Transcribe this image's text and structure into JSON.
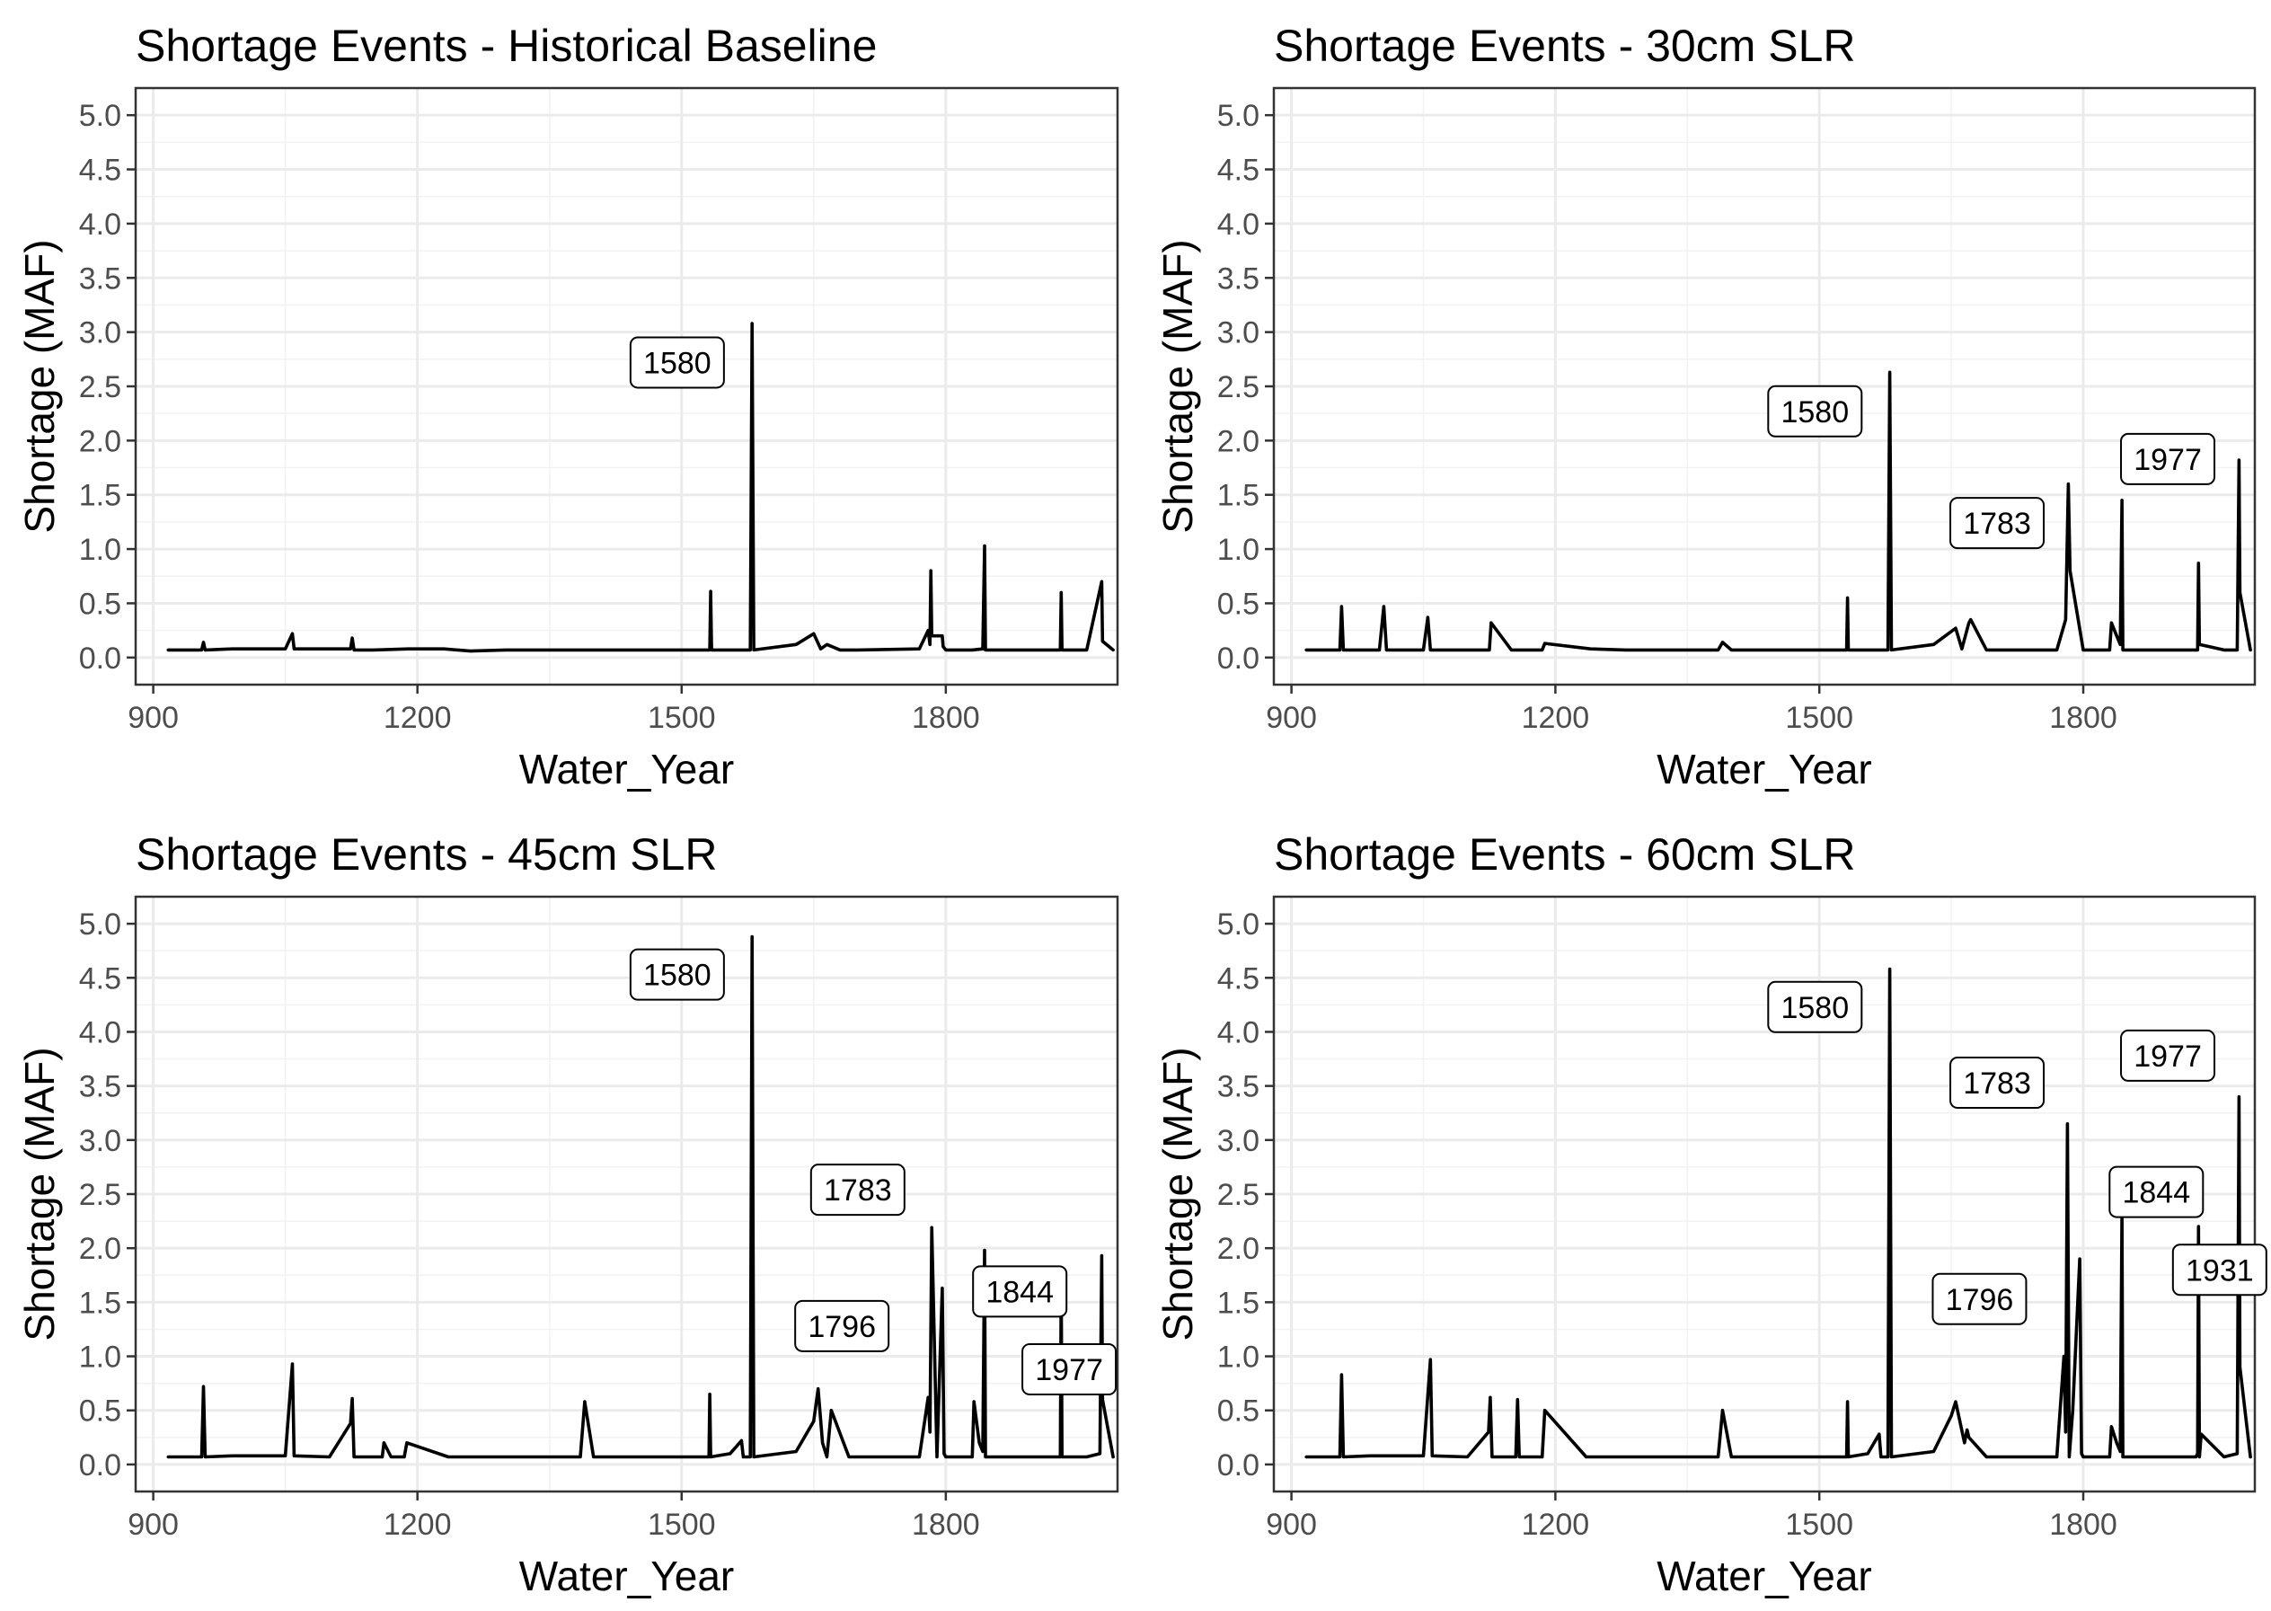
{
  "chart_data": [
    {
      "type": "line",
      "title": "Shortage Events - Historical Baseline",
      "xlabel": "Water_Year",
      "ylabel": "Shortage (MAF)",
      "xlim": [
        880,
        1995
      ],
      "ylim": [
        -0.25,
        5.25
      ],
      "xticks": [
        900,
        1200,
        1500,
        1800
      ],
      "yticks": [
        0.0,
        0.5,
        1.0,
        1.5,
        2.0,
        2.5,
        3.0,
        3.5,
        4.0,
        4.5,
        5.0
      ],
      "ytick_labels": [
        "0.0",
        "0.5",
        "1.0",
        "1.5",
        "2.0",
        "2.5",
        "3.0",
        "3.5",
        "4.0",
        "4.5",
        "5.0"
      ],
      "grid": true,
      "series": [
        {
          "x": [
            917,
            955,
            957,
            959,
            990,
            1050,
            1058,
            1060,
            1100,
            1124,
            1126,
            1128,
            1150,
            1190,
            1230,
            1260,
            1300,
            1400,
            1500,
            1532,
            1533,
            1534,
            1578,
            1580,
            1582,
            1630,
            1650,
            1658,
            1665,
            1680,
            1700,
            1770,
            1780,
            1782,
            1783,
            1784,
            1796,
            1797,
            1800,
            1830,
            1842,
            1844,
            1845,
            1900,
            1930,
            1931,
            1932,
            1960,
            1977,
            1978,
            1990
          ],
          "values": [
            0.07,
            0.07,
            0.14,
            0.07,
            0.08,
            0.08,
            0.22,
            0.08,
            0.08,
            0.08,
            0.18,
            0.07,
            0.07,
            0.08,
            0.08,
            0.06,
            0.07,
            0.07,
            0.07,
            0.07,
            0.61,
            0.07,
            0.07,
            3.08,
            0.07,
            0.12,
            0.22,
            0.08,
            0.12,
            0.07,
            0.07,
            0.08,
            0.25,
            0.12,
            0.8,
            0.2,
            0.2,
            0.1,
            0.07,
            0.07,
            0.08,
            1.03,
            0.07,
            0.07,
            0.07,
            0.6,
            0.07,
            0.07,
            0.7,
            0.15,
            0.07
          ]
        }
      ],
      "annotations": [
        {
          "label": "1580",
          "x": 1495,
          "y": 2.72
        }
      ]
    },
    {
      "type": "line",
      "title": "Shortage Events - 30cm SLR",
      "xlabel": "Water_Year",
      "ylabel": "Shortage (MAF)",
      "xlim": [
        880,
        1995
      ],
      "ylim": [
        -0.25,
        5.25
      ],
      "xticks": [
        900,
        1200,
        1500,
        1800
      ],
      "yticks": [
        0.0,
        0.5,
        1.0,
        1.5,
        2.0,
        2.5,
        3.0,
        3.5,
        4.0,
        4.5,
        5.0
      ],
      "ytick_labels": [
        "0.0",
        "0.5",
        "1.0",
        "1.5",
        "2.0",
        "2.5",
        "3.0",
        "3.5",
        "4.0",
        "4.5",
        "5.0"
      ],
      "grid": true,
      "series": [
        {
          "x": [
            917,
            955,
            957,
            959,
            1000,
            1005,
            1008,
            1050,
            1055,
            1058,
            1100,
            1125,
            1127,
            1150,
            1185,
            1188,
            1240,
            1280,
            1385,
            1390,
            1400,
            1500,
            1531,
            1532,
            1533,
            1578,
            1580,
            1582,
            1630,
            1655,
            1662,
            1670,
            1672,
            1690,
            1770,
            1780,
            1783,
            1785,
            1800,
            1830,
            1832,
            1838,
            1842,
            1844,
            1845,
            1920,
            1930,
            1931,
            1932,
            1960,
            1975,
            1977,
            1978,
            1990
          ],
          "values": [
            0.07,
            0.07,
            0.47,
            0.07,
            0.07,
            0.47,
            0.07,
            0.07,
            0.37,
            0.07,
            0.07,
            0.07,
            0.32,
            0.07,
            0.07,
            0.13,
            0.08,
            0.07,
            0.07,
            0.14,
            0.07,
            0.07,
            0.07,
            0.55,
            0.07,
            0.07,
            2.63,
            0.07,
            0.12,
            0.27,
            0.08,
            0.32,
            0.35,
            0.07,
            0.07,
            0.35,
            1.6,
            0.8,
            0.07,
            0.07,
            0.32,
            0.2,
            0.12,
            1.45,
            0.07,
            0.07,
            0.07,
            0.87,
            0.12,
            0.07,
            0.07,
            1.82,
            0.6,
            0.07
          ]
        }
      ],
      "annotations": [
        {
          "label": "1580",
          "x": 1495,
          "y": 2.27
        },
        {
          "label": "1783",
          "x": 1702,
          "y": 1.24
        },
        {
          "label": "1977",
          "x": 1896,
          "y": 1.83
        }
      ]
    },
    {
      "type": "line",
      "title": "Shortage Events - 45cm SLR",
      "xlabel": "Water_Year",
      "ylabel": "Shortage (MAF)",
      "xlim": [
        880,
        1995
      ],
      "ylim": [
        -0.25,
        5.25
      ],
      "xticks": [
        900,
        1200,
        1500,
        1800
      ],
      "yticks": [
        0.0,
        0.5,
        1.0,
        1.5,
        2.0,
        2.5,
        3.0,
        3.5,
        4.0,
        4.5,
        5.0
      ],
      "ytick_labels": [
        "0.0",
        "0.5",
        "1.0",
        "1.5",
        "2.0",
        "2.5",
        "3.0",
        "3.5",
        "4.0",
        "4.5",
        "5.0"
      ],
      "grid": true,
      "series": [
        {
          "x": [
            917,
            955,
            957,
            959,
            990,
            1050,
            1058,
            1060,
            1100,
            1124,
            1126,
            1128,
            1150,
            1160,
            1162,
            1170,
            1180,
            1185,
            1188,
            1235,
            1250,
            1300,
            1385,
            1390,
            1400,
            1500,
            1531,
            1532,
            1533,
            1555,
            1568,
            1570,
            1578,
            1580,
            1582,
            1630,
            1650,
            1655,
            1660,
            1665,
            1670,
            1690,
            1770,
            1780,
            1782,
            1784,
            1790,
            1796,
            1798,
            1800,
            1830,
            1832,
            1838,
            1842,
            1844,
            1845,
            1920,
            1930,
            1931,
            1932,
            1960,
            1975,
            1977,
            1978,
            1990
          ],
          "values": [
            0.07,
            0.07,
            0.72,
            0.07,
            0.08,
            0.08,
            0.93,
            0.08,
            0.07,
            0.38,
            0.61,
            0.07,
            0.07,
            0.07,
            0.2,
            0.07,
            0.07,
            0.07,
            0.2,
            0.07,
            0.07,
            0.07,
            0.07,
            0.58,
            0.07,
            0.07,
            0.07,
            0.65,
            0.07,
            0.1,
            0.22,
            0.07,
            0.07,
            4.88,
            0.07,
            0.12,
            0.4,
            0.7,
            0.2,
            0.07,
            0.5,
            0.07,
            0.07,
            0.62,
            0.3,
            2.19,
            0.07,
            1.63,
            0.1,
            0.07,
            0.07,
            0.58,
            0.2,
            0.12,
            1.98,
            0.07,
            0.07,
            0.07,
            1.72,
            0.07,
            0.07,
            0.1,
            1.93,
            0.6,
            0.07
          ]
        }
      ],
      "annotations": [
        {
          "label": "1580",
          "x": 1495,
          "y": 4.53
        },
        {
          "label": "1783",
          "x": 1700,
          "y": 2.54
        },
        {
          "label": "1796",
          "x": 1682,
          "y": 1.28
        },
        {
          "label": "1844",
          "x": 1884,
          "y": 1.6
        },
        {
          "label": "1977",
          "x": 1940,
          "y": 0.88
        }
      ]
    },
    {
      "type": "line",
      "title": "Shortage Events - 60cm SLR",
      "xlabel": "Water_Year",
      "ylabel": "Shortage (MAF)",
      "xlim": [
        880,
        1995
      ],
      "ylim": [
        -0.25,
        5.25
      ],
      "xticks": [
        900,
        1200,
        1500,
        1800
      ],
      "yticks": [
        0.0,
        0.5,
        1.0,
        1.5,
        2.0,
        2.5,
        3.0,
        3.5,
        4.0,
        4.5,
        5.0
      ],
      "ytick_labels": [
        "0.0",
        "0.5",
        "1.0",
        "1.5",
        "2.0",
        "2.5",
        "3.0",
        "3.5",
        "4.0",
        "4.5",
        "5.0"
      ],
      "grid": true,
      "series": [
        {
          "x": [
            917,
            955,
            957,
            959,
            990,
            1050,
            1058,
            1060,
            1100,
            1124,
            1126,
            1128,
            1150,
            1155,
            1157,
            1159,
            1175,
            1185,
            1188,
            1235,
            1250,
            1300,
            1385,
            1390,
            1400,
            1500,
            1531,
            1532,
            1533,
            1555,
            1568,
            1570,
            1578,
            1580,
            1582,
            1630,
            1650,
            1655,
            1665,
            1668,
            1670,
            1690,
            1770,
            1778,
            1780,
            1782,
            1784,
            1788,
            1796,
            1798,
            1800,
            1830,
            1832,
            1838,
            1842,
            1844,
            1845,
            1920,
            1928,
            1930,
            1931,
            1932,
            1934,
            1960,
            1975,
            1977,
            1978,
            1990
          ],
          "values": [
            0.07,
            0.07,
            0.83,
            0.07,
            0.08,
            0.08,
            0.97,
            0.08,
            0.07,
            0.3,
            0.62,
            0.07,
            0.07,
            0.07,
            0.6,
            0.07,
            0.07,
            0.07,
            0.5,
            0.07,
            0.07,
            0.07,
            0.07,
            0.5,
            0.07,
            0.07,
            0.07,
            0.58,
            0.07,
            0.1,
            0.28,
            0.07,
            0.07,
            4.58,
            0.07,
            0.12,
            0.45,
            0.58,
            0.2,
            0.32,
            0.25,
            0.07,
            0.07,
            1.0,
            0.3,
            3.15,
            0.07,
            0.5,
            1.9,
            0.1,
            0.07,
            0.07,
            0.35,
            0.2,
            0.12,
            2.32,
            0.07,
            0.07,
            0.07,
            0.1,
            2.2,
            0.07,
            0.28,
            0.07,
            0.1,
            3.4,
            0.9,
            0.07
          ]
        }
      ],
      "annotations": [
        {
          "label": "1580",
          "x": 1495,
          "y": 4.23
        },
        {
          "label": "1783",
          "x": 1702,
          "y": 3.53
        },
        {
          "label": "1796",
          "x": 1682,
          "y": 1.53
        },
        {
          "label": "1844",
          "x": 1883,
          "y": 2.52
        },
        {
          "label": "1931",
          "x": 1955,
          "y": 1.8
        },
        {
          "label": "1977",
          "x": 1896,
          "y": 3.78
        }
      ]
    }
  ]
}
